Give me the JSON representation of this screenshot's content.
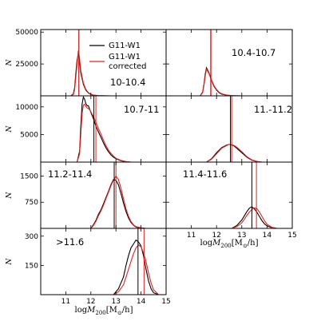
{
  "chart_data": {
    "type": "line",
    "x_axis_label_main": "log",
    "x_axis_label_var": "M",
    "x_axis_label_sub": "200",
    "x_axis_label_units": "[M",
    "x_axis_label_sun": "⊙",
    "x_axis_label_tail": "/h]",
    "y_axis_label": "N",
    "legend": [
      {
        "name": "G11-W1",
        "color": "#000000"
      },
      {
        "name": "G11-W1 corrected",
        "color": "#e8201c"
      }
    ],
    "xlim": [
      10,
      15
    ],
    "x_ticks": [
      "11",
      "12",
      "13",
      "14",
      "15"
    ],
    "panels": [
      {
        "label": "10-10.4",
        "ylim": [
          0,
          52000
        ],
        "y_ticks": [
          "25000",
          "50000"
        ],
        "y_tick_values": [
          25000,
          50000
        ],
        "median_black": 11.52,
        "median_red": 11.52,
        "series": [
          {
            "name": "G11-W1",
            "x": [
              11.2,
              11.3,
              11.35,
              11.4,
              11.45,
              11.5,
              11.55,
              11.6,
              11.7,
              11.8,
              11.9,
              12.0,
              12.1,
              12.3,
              12.5,
              12.8,
              13.0
            ],
            "y": [
              0,
              1500,
              6000,
              18000,
              28000,
              33000,
              27000,
              18000,
              9000,
              4500,
              2200,
              1000,
              500,
              150,
              50,
              10,
              0
            ]
          },
          {
            "name": "G11-W1 corrected",
            "x": [
              11.2,
              11.3,
              11.35,
              11.4,
              11.45,
              11.5,
              11.55,
              11.6,
              11.7,
              11.8,
              11.9,
              12.0,
              12.1,
              12.3,
              12.5,
              12.8,
              13.0
            ],
            "y": [
              0,
              1000,
              4500,
              15000,
              25000,
              35500,
              29000,
              20000,
              10000,
              5000,
              2500,
              1200,
              600,
              200,
              60,
              10,
              0
            ]
          }
        ]
      },
      {
        "label": "10.4-10.7",
        "ylim": [
          0,
          52000
        ],
        "y_ticks": [],
        "y_tick_values": [
          25000
        ],
        "median_black": 11.77,
        "median_red": 11.78,
        "series": [
          {
            "name": "G11-W1",
            "x": [
              11.35,
              11.45,
              11.5,
              11.55,
              11.6,
              11.7,
              11.8,
              11.9,
              12.0,
              12.1,
              12.2,
              12.4,
              12.6,
              12.8,
              13.0
            ],
            "y": [
              0,
              3000,
              9000,
              17000,
              22000,
              18000,
              12000,
              7500,
              4500,
              2500,
              1400,
              500,
              150,
              40,
              0
            ]
          },
          {
            "name": "G11-W1 corrected",
            "x": [
              11.35,
              11.45,
              11.5,
              11.55,
              11.6,
              11.7,
              11.8,
              11.9,
              12.0,
              12.1,
              12.2,
              12.4,
              12.6,
              12.8,
              13.0
            ],
            "y": [
              0,
              2500,
              8000,
              15500,
              21000,
              17500,
              12500,
              8000,
              5000,
              2800,
              1600,
              600,
              180,
              50,
              0
            ]
          }
        ]
      },
      {
        "label": "10.7-11",
        "ylim": [
          0,
          12000
        ],
        "y_ticks": [
          "5000",
          "10000"
        ],
        "y_tick_values": [
          5000,
          10000
        ],
        "median_black": 12.12,
        "median_red": 12.2,
        "series": [
          {
            "name": "G11-W1",
            "x": [
              11.45,
              11.55,
              11.6,
              11.65,
              11.7,
              11.75,
              11.8,
              11.85,
              11.9,
              11.95,
              12.0,
              12.1,
              12.2,
              12.3,
              12.4,
              12.5,
              12.6,
              12.7,
              12.8,
              12.9,
              13.0,
              13.2,
              13.4,
              13.6
            ],
            "y": [
              0,
              2000,
              6500,
              10500,
              11800,
              11400,
              10600,
              10200,
              10200,
              9600,
              9000,
              7900,
              6500,
              5500,
              4500,
              3500,
              2600,
              1900,
              1300,
              900,
              600,
              250,
              80,
              0
            ]
          },
          {
            "name": "G11-W1 corrected",
            "x": [
              11.45,
              11.55,
              11.6,
              11.65,
              11.7,
              11.75,
              11.8,
              11.85,
              11.9,
              11.95,
              12.0,
              12.1,
              12.2,
              12.3,
              12.4,
              12.5,
              12.6,
              12.7,
              12.8,
              12.9,
              13.0,
              13.2,
              13.4,
              13.6
            ],
            "y": [
              0,
              1500,
              5000,
              8800,
              10300,
              10500,
              10100,
              9800,
              9700,
              9500,
              9100,
              8300,
              7200,
              6100,
              5100,
              4000,
              3000,
              2200,
              1600,
              1100,
              700,
              300,
              100,
              0
            ]
          }
        ]
      },
      {
        "label": "11.-11.2",
        "ylim": [
          0,
          12000
        ],
        "y_ticks": [],
        "y_tick_values": [
          5000
        ],
        "median_black": 12.55,
        "median_red": 12.6,
        "series": [
          {
            "name": "G11-W1",
            "x": [
              11.6,
              11.8,
              12.0,
              12.2,
              12.4,
              12.5,
              12.6,
              12.7,
              12.8,
              13.0,
              13.2,
              13.4,
              13.6,
              13.8
            ],
            "y": [
              0,
              600,
              1700,
              2600,
              3100,
              3200,
              3100,
              2900,
              2500,
              1700,
              900,
              350,
              100,
              0
            ]
          },
          {
            "name": "G11-W1 corrected",
            "x": [
              11.6,
              11.8,
              12.0,
              12.2,
              12.4,
              12.5,
              12.6,
              12.7,
              12.8,
              13.0,
              13.2,
              13.4,
              13.6,
              13.8
            ],
            "y": [
              0,
              500,
              1500,
              2500,
              3000,
              3200,
              3150,
              3000,
              2700,
              1900,
              1000,
              400,
              120,
              0
            ]
          }
        ]
      },
      {
        "label": "11.2-11.4",
        "ylim": [
          0,
          1900
        ],
        "y_ticks": [
          "750",
          "1500"
        ],
        "y_tick_values": [
          750,
          1500
        ],
        "median_black": 12.93,
        "median_red": 13.0,
        "series": [
          {
            "name": "G11-W1",
            "x": [
              12.0,
              12.1,
              12.2,
              12.3,
              12.4,
              12.5,
              12.6,
              12.7,
              12.8,
              12.9,
              13.0,
              13.1,
              13.2,
              13.3,
              13.4,
              13.5,
              13.6,
              13.7,
              13.8,
              14.0,
              14.2
            ],
            "y": [
              0,
              100,
              230,
              400,
              530,
              700,
              880,
              1060,
              1250,
              1400,
              1380,
              1250,
              1000,
              730,
              480,
              300,
              170,
              90,
              40,
              10,
              0
            ]
          },
          {
            "name": "G11-W1 corrected",
            "x": [
              12.0,
              12.1,
              12.2,
              12.3,
              12.4,
              12.5,
              12.6,
              12.7,
              12.8,
              12.9,
              13.0,
              13.1,
              13.2,
              13.3,
              13.4,
              13.5,
              13.6,
              13.7,
              13.8,
              14.0,
              14.2
            ],
            "y": [
              0,
              80,
              200,
              360,
              500,
              660,
              850,
              1030,
              1220,
              1380,
              1500,
              1400,
              1150,
              850,
              560,
              350,
              200,
              100,
              50,
              15,
              0
            ]
          }
        ]
      },
      {
        "label": "11.4-11.6",
        "ylim": [
          0,
          1900
        ],
        "y_ticks": [],
        "y_tick_values": [
          750
        ],
        "median_black": 13.4,
        "median_red": 13.58,
        "series": [
          {
            "name": "G11-W1",
            "x": [
              12.6,
              12.8,
              13.0,
              13.1,
              13.2,
              13.3,
              13.4,
              13.5,
              13.6,
              13.7,
              13.8,
              13.9,
              14.0,
              14.2,
              14.4
            ],
            "y": [
              0,
              80,
              240,
              360,
              480,
              580,
              620,
              560,
              460,
              340,
              220,
              130,
              70,
              20,
              0
            ]
          },
          {
            "name": "G11-W1 corrected",
            "x": [
              12.6,
              12.8,
              13.0,
              13.1,
              13.2,
              13.3,
              13.4,
              13.5,
              13.6,
              13.7,
              13.8,
              13.9,
              14.0,
              14.2,
              14.4
            ],
            "y": [
              0,
              50,
              160,
              260,
              370,
              470,
              540,
              590,
              560,
              470,
              340,
              220,
              120,
              30,
              0
            ]
          }
        ]
      },
      {
        "label": ">11.6",
        "ylim": [
          0,
          340
        ],
        "y_ticks": [
          "150",
          "300"
        ],
        "y_tick_values": [
          150,
          300
        ],
        "median_black": 13.88,
        "median_red": 14.12,
        "series": [
          {
            "name": "G11-W1",
            "x": [
              12.9,
              13.1,
              13.3,
              13.4,
              13.5,
              13.6,
              13.7,
              13.8,
              13.9,
              14.0,
              14.1,
              14.2,
              14.3,
              14.4,
              14.5,
              14.7
            ],
            "y": [
              0,
              30,
              90,
              150,
              200,
              240,
              260,
              280,
              270,
              250,
              200,
              130,
              70,
              30,
              10,
              0
            ]
          },
          {
            "name": "G11-W1 corrected",
            "x": [
              12.9,
              13.1,
              13.3,
              13.4,
              13.5,
              13.6,
              13.7,
              13.8,
              13.9,
              14.0,
              14.1,
              14.2,
              14.3,
              14.4,
              14.5,
              14.7
            ],
            "y": [
              0,
              15,
              50,
              90,
              130,
              170,
              210,
              240,
              255,
              245,
              215,
              170,
              110,
              60,
              25,
              0
            ]
          }
        ]
      }
    ]
  }
}
